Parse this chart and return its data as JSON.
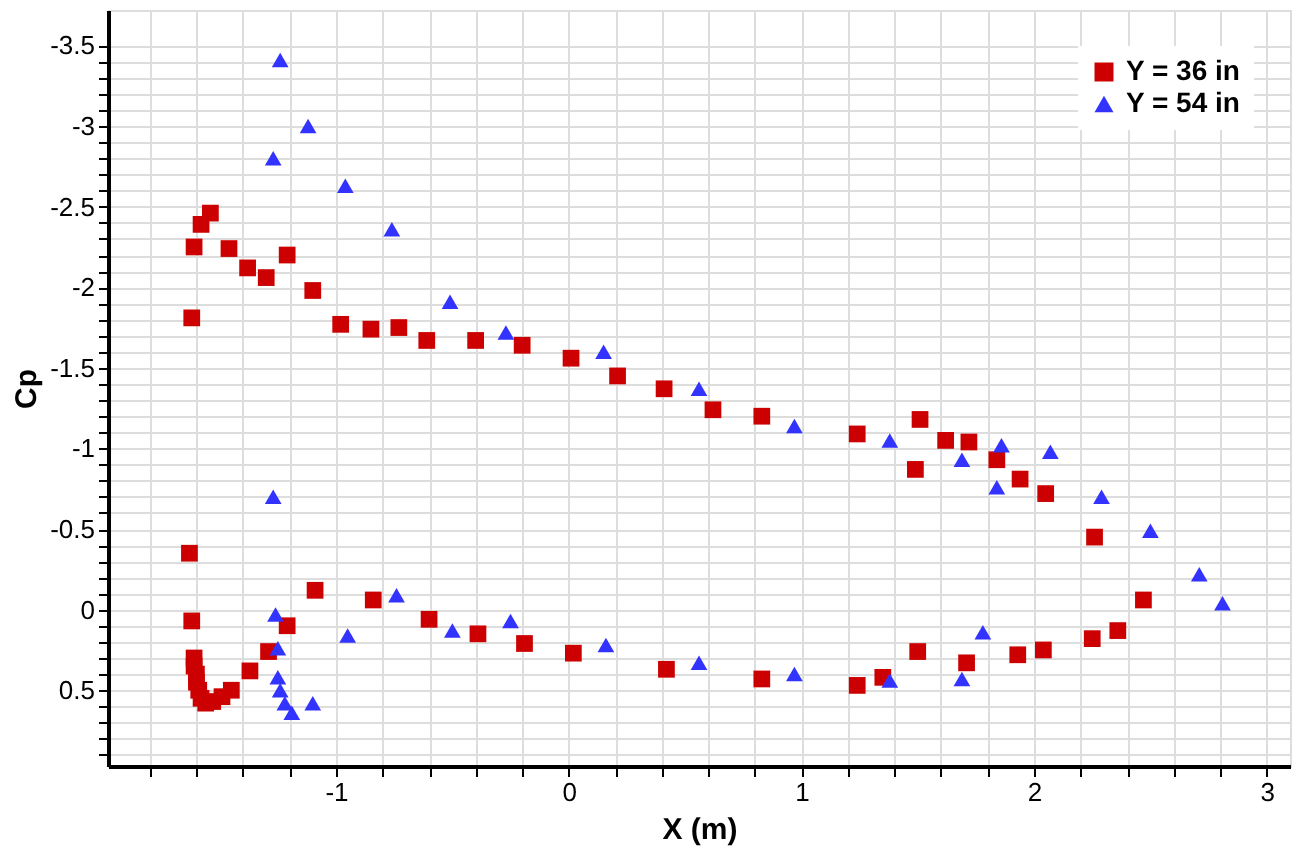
{
  "chart_data": {
    "type": "scatter",
    "xlabel": "X (m)",
    "ylabel": "Cp",
    "xlim": [
      -1.98,
      3.1
    ],
    "ylim": [
      0.97,
      -3.72
    ],
    "xticks": [
      {
        "value": -1.8,
        "label": null
      },
      {
        "value": -1.6,
        "label": null
      },
      {
        "value": -1.4,
        "label": null
      },
      {
        "value": -1.2,
        "label": null
      },
      -1,
      {
        "value": -0.8,
        "label": null
      },
      {
        "value": -0.6,
        "label": null
      },
      {
        "value": -0.4,
        "label": null
      },
      {
        "value": -0.2,
        "label": null
      },
      0,
      {
        "value": 0.2,
        "label": null
      },
      {
        "value": 0.4,
        "label": null
      },
      {
        "value": 0.6,
        "label": null
      },
      {
        "value": 0.8,
        "label": null
      },
      1,
      {
        "value": 1.2,
        "label": null
      },
      {
        "value": 1.4,
        "label": null
      },
      {
        "value": 1.6,
        "label": null
      },
      {
        "value": 1.8,
        "label": null
      },
      2,
      {
        "value": 2.2,
        "label": null
      },
      {
        "value": 2.4,
        "label": null
      },
      {
        "value": 2.6,
        "label": null
      },
      {
        "value": 2.8,
        "label": null
      },
      3
    ],
    "yticks": [
      -3.5,
      {
        "value": -3.4,
        "label": null
      },
      {
        "value": -3.3,
        "label": null
      },
      {
        "value": -3.2,
        "label": null
      },
      {
        "value": -3.1,
        "label": null
      },
      -3,
      {
        "value": -2.9,
        "label": null
      },
      {
        "value": -2.8,
        "label": null
      },
      {
        "value": -2.7,
        "label": null
      },
      {
        "value": -2.6,
        "label": null
      },
      -2.5,
      {
        "value": -2.4,
        "label": null
      },
      {
        "value": -2.3,
        "label": null
      },
      {
        "value": -2.2,
        "label": null
      },
      {
        "value": -2.1,
        "label": null
      },
      -2,
      {
        "value": -1.9,
        "label": null
      },
      {
        "value": -1.8,
        "label": null
      },
      {
        "value": -1.7,
        "label": null
      },
      {
        "value": -1.6,
        "label": null
      },
      -1.5,
      {
        "value": -1.4,
        "label": null
      },
      {
        "value": -1.3,
        "label": null
      },
      {
        "value": -1.2,
        "label": null
      },
      {
        "value": -1.1,
        "label": null
      },
      -1,
      {
        "value": -0.9,
        "label": null
      },
      {
        "value": -0.8,
        "label": null
      },
      {
        "value": -0.7,
        "label": null
      },
      {
        "value": -0.6,
        "label": null
      },
      -0.5,
      {
        "value": -0.4,
        "label": null
      },
      {
        "value": -0.3,
        "label": null
      },
      {
        "value": -0.2,
        "label": null
      },
      {
        "value": -0.1,
        "label": null
      },
      0,
      {
        "value": 0.1,
        "label": null
      },
      {
        "value": 0.2,
        "label": null
      },
      {
        "value": 0.3,
        "label": null
      },
      {
        "value": 0.4,
        "label": null
      },
      0.5,
      {
        "value": 0.6,
        "label": null
      },
      {
        "value": 0.7,
        "label": null
      },
      {
        "value": 0.8,
        "label": null
      },
      {
        "value": 0.9,
        "label": null
      }
    ],
    "grid": true,
    "legend": "top right",
    "series": [
      {
        "name": "Y = 36 in",
        "color": "#cc0000",
        "marker": "square",
        "x": [
          -1.62,
          -1.61,
          -1.58,
          -1.54,
          -1.46,
          -1.38,
          -1.3,
          -1.21,
          -1.1,
          -0.98,
          -0.85,
          -0.73,
          -0.61,
          -0.4,
          -0.2,
          0.01,
          0.21,
          0.41,
          0.62,
          0.83,
          1.24,
          1.51,
          1.49,
          1.62,
          1.72,
          1.84,
          1.94,
          2.05,
          2.26,
          2.47,
          2.36,
          2.25,
          2.04,
          1.93,
          1.71,
          1.5,
          1.35,
          1.24,
          0.83,
          0.42,
          0.02,
          -0.19,
          -0.39,
          -0.6,
          -0.84,
          -1.09,
          -1.21,
          -1.29,
          -1.37,
          -1.45,
          -1.49,
          -1.53,
          -1.56,
          -1.58,
          -1.59,
          -1.6,
          -1.6,
          -1.61,
          -1.61,
          -1.62,
          -1.63
        ],
        "values": [
          -1.81,
          -2.25,
          -2.39,
          -2.46,
          -2.24,
          -2.12,
          -2.06,
          -2.2,
          -1.98,
          -1.77,
          -1.74,
          -1.75,
          -1.67,
          -1.67,
          -1.64,
          -1.56,
          -1.45,
          -1.37,
          -1.24,
          -1.2,
          -1.09,
          -1.18,
          -0.87,
          -1.05,
          -1.04,
          -0.93,
          -0.81,
          -0.72,
          -0.45,
          -0.06,
          0.13,
          0.18,
          0.25,
          0.28,
          0.33,
          0.26,
          0.42,
          0.47,
          0.43,
          0.37,
          0.27,
          0.21,
          0.15,
          0.06,
          -0.06,
          -0.12,
          0.1,
          0.26,
          0.38,
          0.5,
          0.54,
          0.57,
          0.58,
          0.55,
          0.5,
          0.45,
          0.4,
          0.35,
          0.3,
          0.07,
          -0.35
        ]
      },
      {
        "name": "Y = 54 in",
        "color": "#3333ff",
        "marker": "triangle",
        "x": [
          -1.27,
          -1.24,
          -1.12,
          -0.96,
          -0.76,
          -0.51,
          -0.27,
          0.15,
          0.56,
          0.97,
          1.38,
          1.69,
          1.86,
          1.84,
          2.07,
          2.29,
          2.5,
          2.71,
          2.81,
          1.78,
          1.69,
          1.38,
          0.97,
          0.56,
          0.16,
          -0.25,
          -0.5,
          -0.74,
          -0.95,
          -1.1,
          -1.19,
          -1.22,
          -1.24,
          -1.25,
          -1.25,
          -1.26,
          -1.27
        ],
        "values": [
          -2.8,
          -3.41,
          -3.0,
          -2.63,
          -2.36,
          -1.91,
          -1.72,
          -1.6,
          -1.37,
          -1.14,
          -1.05,
          -0.93,
          -1.02,
          -0.76,
          -0.98,
          -0.7,
          -0.49,
          -0.22,
          -0.04,
          0.14,
          0.43,
          0.44,
          0.4,
          0.33,
          0.22,
          0.07,
          0.13,
          -0.09,
          0.16,
          0.58,
          0.64,
          0.58,
          0.5,
          0.42,
          0.24,
          0.03,
          -0.7
        ]
      }
    ]
  }
}
